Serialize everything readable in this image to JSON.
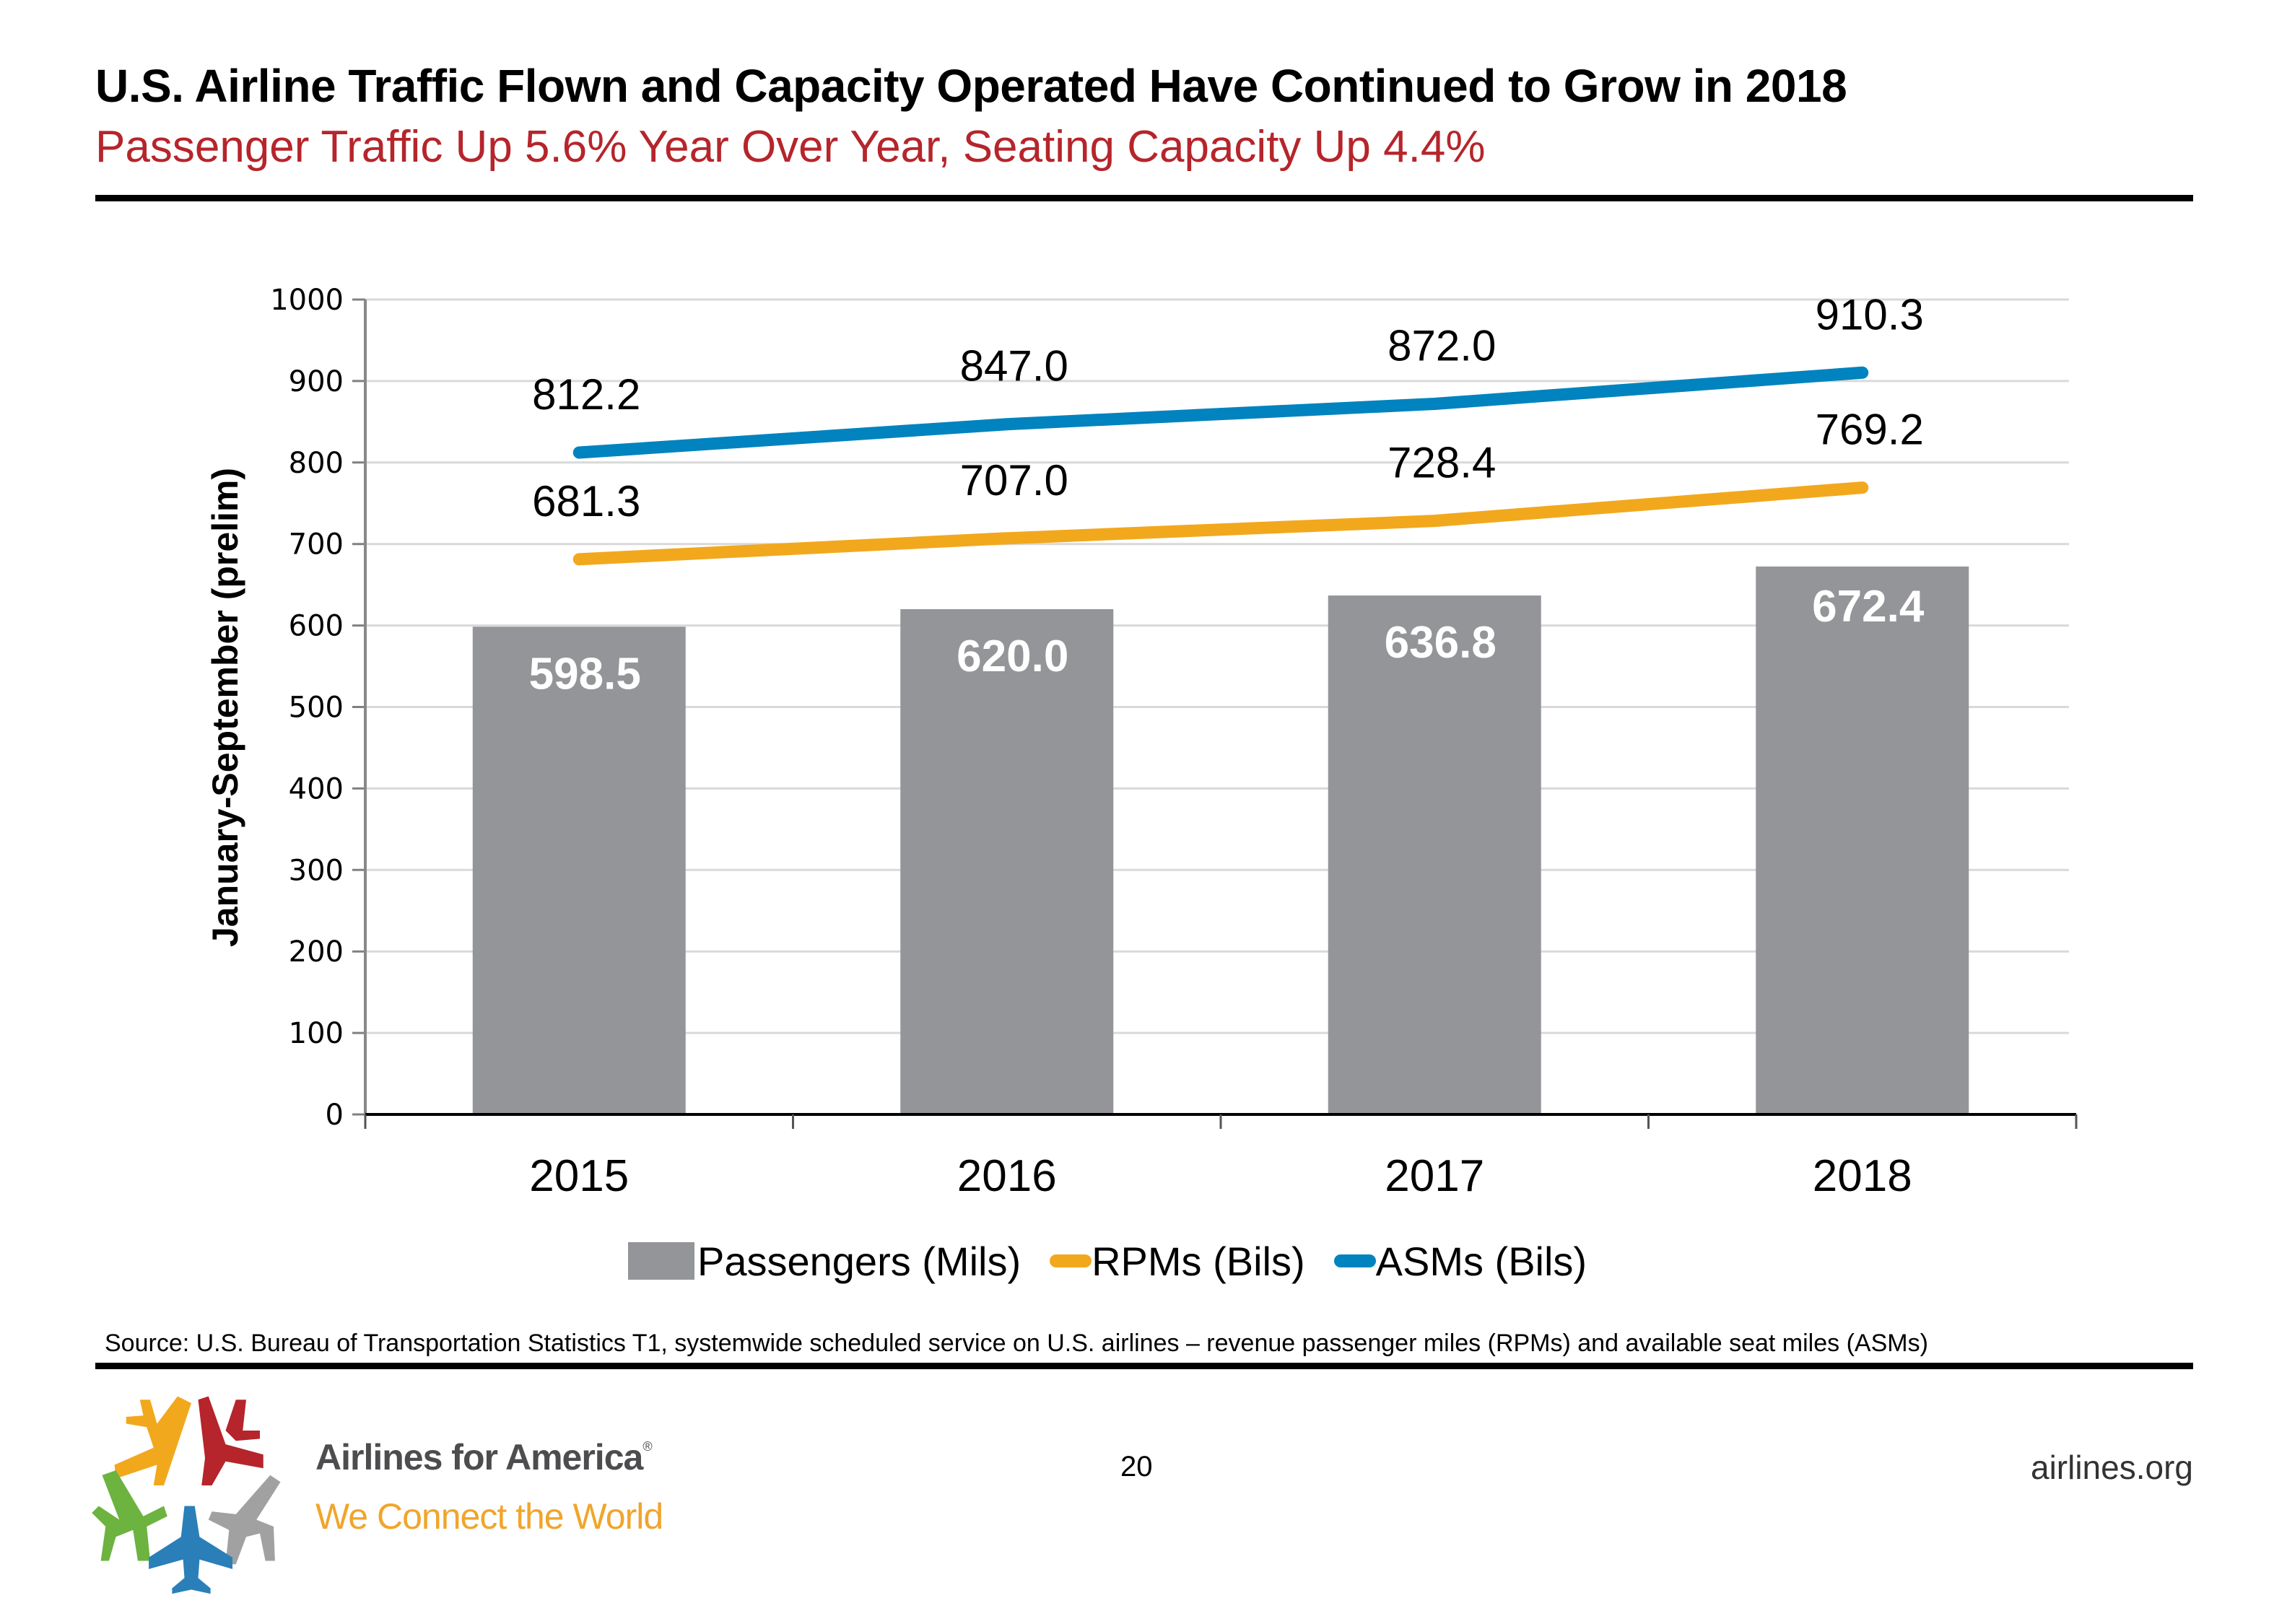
{
  "header": {
    "title": "U.S. Airline Traffic Flown and Capacity Operated Have Continued to Grow in 2018",
    "subtitle": "Passenger Traffic Up 5.6% Year Over Year, Seating Capacity Up 4.4%"
  },
  "chart_data": {
    "type": "bar",
    "title": "U.S. Airline Traffic Flown and Capacity Operated Have Continued to Grow in 2018",
    "subtitle": "Passenger Traffic Up 5.6% Year Over Year, Seating Capacity Up 4.4%",
    "categories": [
      "2015",
      "2016",
      "2017",
      "2018"
    ],
    "xlabel": "",
    "ylabel": "January-September (prelim)",
    "ylim": [
      0,
      1000
    ],
    "yticks": [
      0,
      100,
      200,
      300,
      400,
      500,
      600,
      700,
      800,
      900,
      1000
    ],
    "grid": true,
    "legend_position": "bottom",
    "series": [
      {
        "name": "Passengers (Mils)",
        "type": "bar",
        "color": "#939598",
        "values": [
          598.5,
          620.0,
          636.8,
          672.4
        ],
        "labels": [
          "598.5",
          "620.0",
          "636.8",
          "672.4"
        ]
      },
      {
        "name": "RPMs (Bils)",
        "type": "line",
        "color": "#f2a81d",
        "values": [
          681.3,
          707.0,
          728.4,
          769.2
        ],
        "labels": [
          "681.3",
          "707.0",
          "728.4",
          "769.2"
        ]
      },
      {
        "name": "ASMs (Bils)",
        "type": "line",
        "color": "#0083be",
        "values": [
          812.2,
          847.0,
          872.0,
          910.3
        ],
        "labels": [
          "812.2",
          "847.0",
          "872.0",
          "910.3"
        ]
      }
    ]
  },
  "footer": {
    "source": "Source: U.S. Bureau of Transportation Statistics T1, systemwide scheduled service on U.S. airlines – revenue passenger miles (RPMs) and available seat miles (ASMs)",
    "page_number": "20",
    "website": "airlines.org",
    "logo_name": "Airlines for America",
    "logo_registered": "®",
    "logo_tagline": "We Connect the World"
  }
}
